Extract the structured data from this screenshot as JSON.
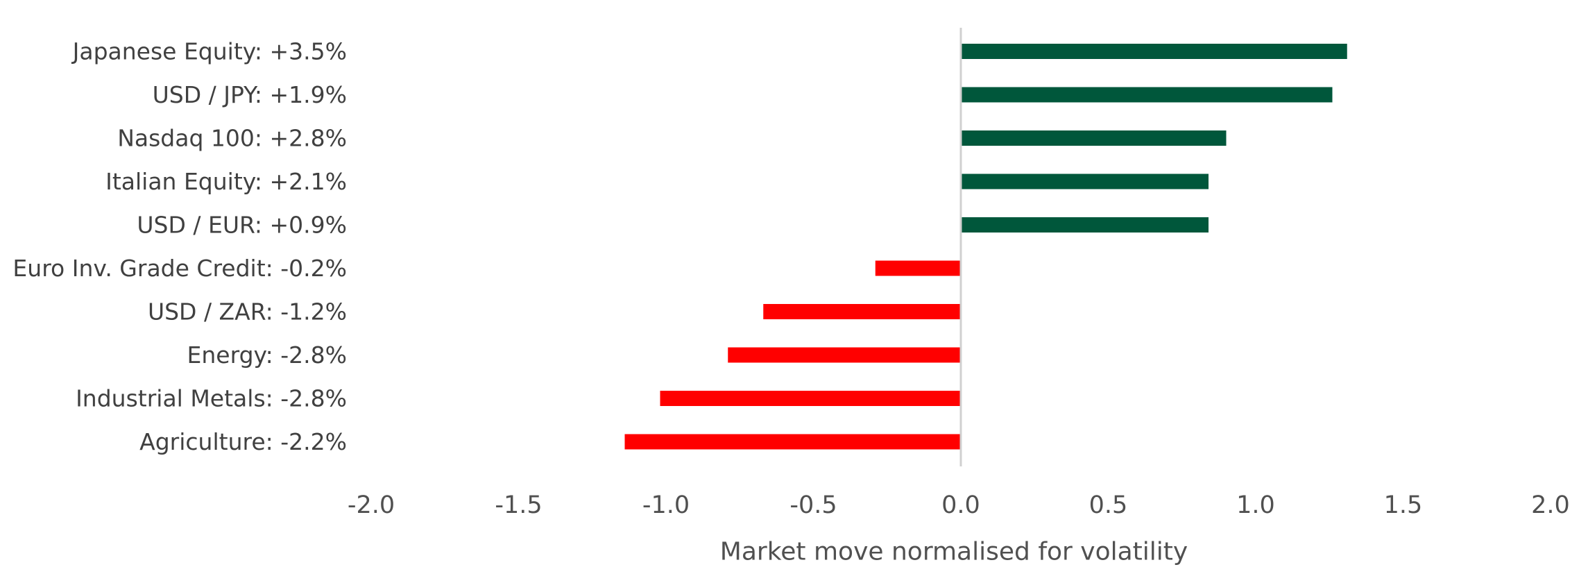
{
  "chart_data": {
    "type": "bar",
    "orientation": "horizontal",
    "title": "",
    "xlabel": "Market move normalised for volatility",
    "ylabel": "",
    "xlim": [
      -2.0,
      2.0
    ],
    "xticks": [
      "-2.0",
      "-1.5",
      "-1.0",
      "-0.5",
      "0.0",
      "0.5",
      "1.0",
      "1.5",
      "2.0"
    ],
    "categories": [
      "Japanese Equity: +3.5%",
      "USD / JPY: +1.9%",
      "Nasdaq 100: +2.8%",
      "Italian Equity: +2.1%",
      "USD / EUR: +0.9%",
      "Euro Inv. Grade Credit: -0.2%",
      "USD / ZAR: -1.2%",
      "Energy: -2.8%",
      "Industrial Metals: -2.8%",
      "Agriculture: -2.2%"
    ],
    "values": [
      1.31,
      1.26,
      0.9,
      0.84,
      0.84,
      -0.29,
      -0.67,
      -0.79,
      -1.02,
      -1.14
    ],
    "grid": false,
    "legend": "none",
    "colors": {
      "positive": "#00573B",
      "negative": "#FF0000",
      "zero_line": "#D0D0D0"
    }
  }
}
